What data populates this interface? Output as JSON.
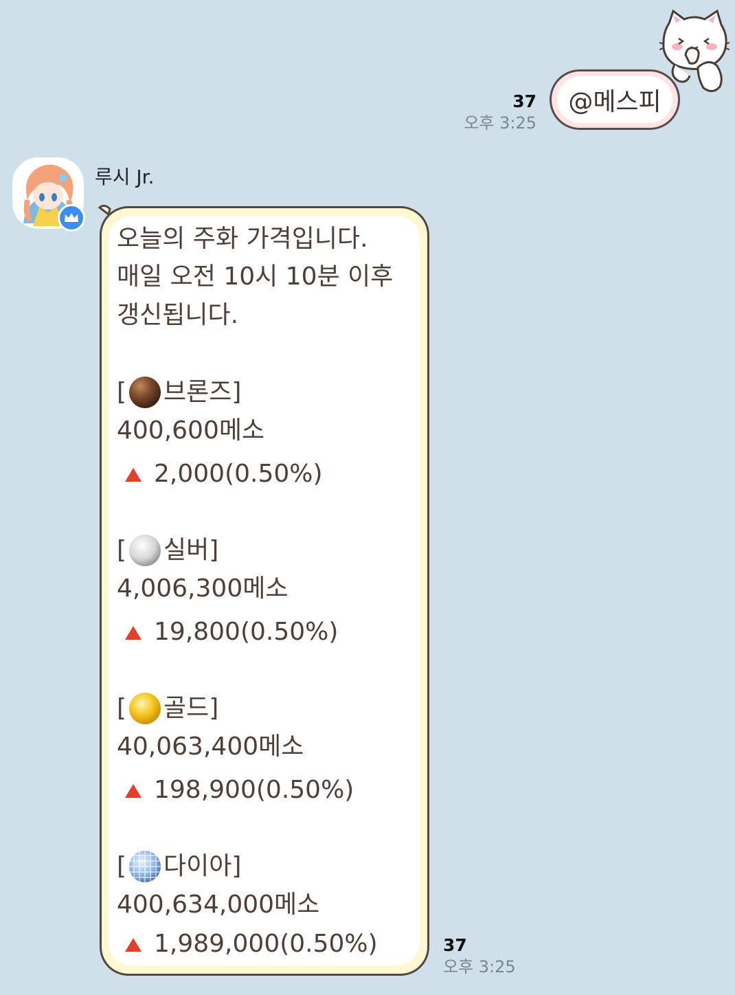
{
  "outgoing": {
    "unread_count": "37",
    "time": "오후 3:25",
    "text": "@메스피",
    "sticker": "cat-sticker"
  },
  "incoming": {
    "sender": "루시 Jr.",
    "badge_icon": "crown-icon",
    "unread_count": "37",
    "time": "오후 3:25",
    "intro_lines": [
      "오늘의 주화 가격입니다.",
      "매일 오전 10시 10분 이후",
      "갱신됩니다."
    ],
    "coins": [
      {
        "bracket_open": "[",
        "name": "브론즈",
        "bracket_close": "]",
        "icon": "bronze-ball-icon",
        "color": "#7a4a2a",
        "price": "400,600메소",
        "change": "2,000(0.50%)"
      },
      {
        "bracket_open": "[",
        "name": "실버",
        "bracket_close": "]",
        "icon": "silver-ball-icon",
        "color": "#d8d8d8",
        "price": "4,006,300메소",
        "change": "19,800(0.50%)"
      },
      {
        "bracket_open": "[",
        "name": "골드",
        "bracket_close": "]",
        "icon": "gold-ball-icon",
        "color": "#f4c21a",
        "price": "40,063,400메소",
        "change": "198,900(0.50%)"
      },
      {
        "bracket_open": "[",
        "name": "다이아",
        "bracket_close": "]",
        "icon": "disco-ball-icon",
        "color": "#8fb4e6",
        "price": "400,634,000메소",
        "change": "1,989,000(0.50%)"
      }
    ]
  },
  "colors": {
    "background": "#cfe0ea",
    "up_arrow": "#e2402f",
    "out_bubble_rim": "#ffe4e6",
    "in_bubble_rim": "#fff8d2",
    "badge": "#3d8df0"
  }
}
